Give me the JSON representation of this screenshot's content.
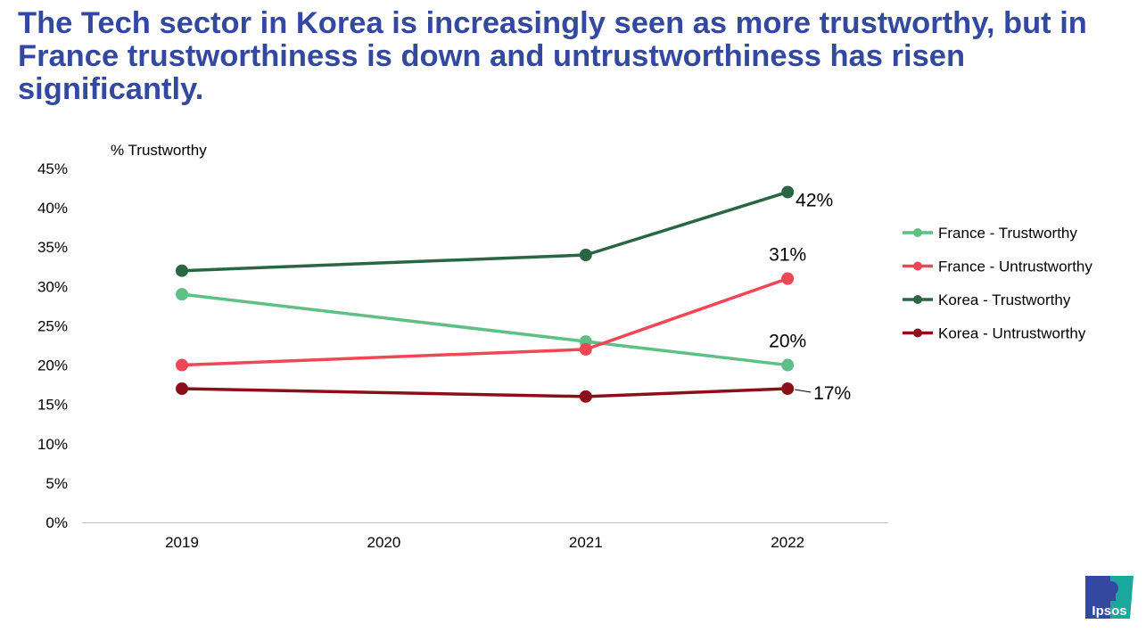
{
  "title": "The Tech sector in Korea is increasingly seen as more trustworthy, but in France trustworthiness is down and untrustworthiness has risen significantly.",
  "logo_text": "Ipsos",
  "chart_data": {
    "type": "line",
    "title": "",
    "ylabel": "% Trustworthy",
    "xlabel": "",
    "categories": [
      "2019",
      "2020",
      "2021",
      "2022"
    ],
    "ylim": [
      0,
      45
    ],
    "yticks": [
      "0%",
      "5%",
      "10%",
      "15%",
      "20%",
      "25%",
      "30%",
      "35%",
      "40%",
      "45%"
    ],
    "grid": false,
    "legend_position": "right",
    "series": [
      {
        "name": "France - Trustworthy",
        "color": "#5fbf84",
        "values": [
          29,
          null,
          23,
          20
        ]
      },
      {
        "name": "France - Untrustworthy",
        "color": "#f04757",
        "values": [
          20,
          null,
          22,
          31
        ]
      },
      {
        "name": "Korea - Trustworthy",
        "color": "#2a6643",
        "values": [
          32,
          null,
          34,
          42
        ]
      },
      {
        "name": "Korea - Untrustworthy",
        "color": "#8c0e1a",
        "values": [
          17,
          null,
          16,
          17
        ]
      }
    ],
    "data_labels": [
      {
        "series": 2,
        "category": "2022",
        "text": "42%"
      },
      {
        "series": 1,
        "category": "2022",
        "text": "31%"
      },
      {
        "series": 0,
        "category": "2022",
        "text": "20%"
      },
      {
        "series": 3,
        "category": "2022",
        "text": "17%"
      }
    ]
  }
}
